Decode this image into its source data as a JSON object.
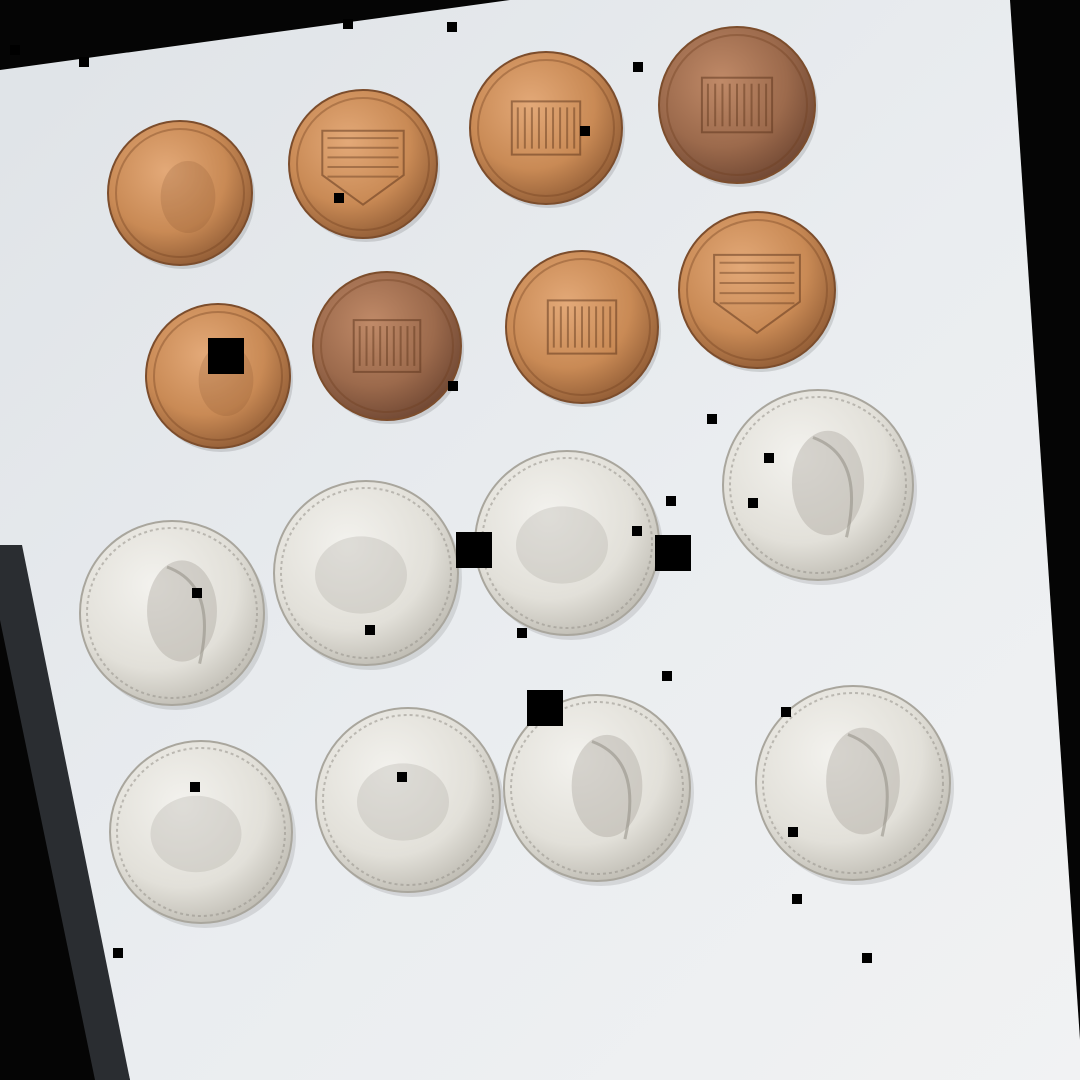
{
  "scene": {
    "background_color": "#050505",
    "table_color": "#e8ebee",
    "table_edge_color": "#2a2d31"
  },
  "coins": {
    "pennies": [
      {
        "kind": "penny",
        "side": "obverse"
      },
      {
        "kind": "penny",
        "side": "reverse-shield"
      },
      {
        "kind": "penny",
        "side": "reverse-memorial"
      },
      {
        "kind": "penny",
        "side": "reverse-memorial"
      },
      {
        "kind": "penny",
        "side": "obverse"
      },
      {
        "kind": "penny",
        "side": "reverse-memorial"
      },
      {
        "kind": "penny",
        "side": "reverse-memorial"
      },
      {
        "kind": "penny",
        "side": "reverse-shield"
      }
    ],
    "quarters": [
      {
        "kind": "quarter",
        "side": "obverse"
      },
      {
        "kind": "quarter",
        "side": "reverse"
      },
      {
        "kind": "quarter",
        "side": "reverse"
      },
      {
        "kind": "quarter",
        "side": "obverse"
      },
      {
        "kind": "quarter",
        "side": "reverse"
      },
      {
        "kind": "quarter",
        "side": "reverse"
      },
      {
        "kind": "quarter",
        "side": "obverse"
      },
      {
        "kind": "quarter",
        "side": "obverse"
      }
    ],
    "counts": {
      "pennies": 8,
      "quarters": 8
    },
    "penny_color": "#c98a55",
    "quarter_color": "#e2e0d9"
  }
}
